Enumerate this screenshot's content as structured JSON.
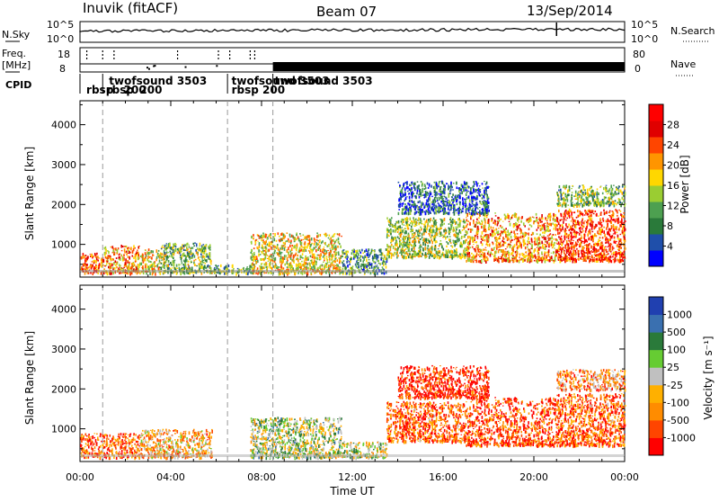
{
  "header": {
    "station": "Inuvik (fitACF)",
    "beam": "Beam 07",
    "date": "13/Sep/2014"
  },
  "summary_panels": {
    "nsky": {
      "left_label": "N.Sky",
      "right_label": "N.Search",
      "left_ticks": [
        "10^5",
        "10^0"
      ],
      "right_ticks": [
        "10^5",
        "10^0"
      ]
    },
    "freq": {
      "left_label_1": "Freq.",
      "left_label_2": "[MHz]",
      "right_label": "Nave",
      "left_ticks": [
        "18",
        "8"
      ],
      "right_ticks": [
        "80",
        "0"
      ]
    },
    "cpid": {
      "label": "CPID",
      "labels": [
        {
          "text": "twofsound 3503",
          "hour": 1.2,
          "row": 1
        },
        {
          "text": "rbsp",
          "hour": 0.2,
          "row": 2
        },
        {
          "text": "rbsp",
          "hour": 1.1,
          "row": 2
        },
        {
          "text": "200",
          "hour": 1.85,
          "row": 2
        },
        {
          "text": "200",
          "hour": 2.55,
          "row": 2
        },
        {
          "text": "twofsound 3503",
          "hour": 6.6,
          "row": 1
        },
        {
          "text": "twofsound 3503",
          "hour": 8.5,
          "row": 1
        },
        {
          "text": "rbsp  200",
          "hour": 6.6,
          "row": 2
        }
      ],
      "boundaries": [
        1.0,
        6.5,
        8.5
      ]
    }
  },
  "chart_data": [
    {
      "type": "heatmap",
      "name": "power",
      "ylabel": "Slant Range [km]",
      "yticks": [
        1000,
        2000,
        3000,
        4000
      ],
      "ylim": [
        180,
        4600
      ],
      "xlim": [
        0,
        24
      ],
      "colorbar": {
        "label": "Power [dB]",
        "ticks": [
          "28",
          "24",
          "20",
          "16",
          "12",
          "8",
          "4"
        ],
        "colors": [
          "#0000ff",
          "#1f4faa",
          "#2a7a3a",
          "#4da050",
          "#9acd32",
          "#ffd700",
          "#ff9500",
          "#ff4500",
          "#e00000",
          "#ff0000"
        ]
      },
      "scatter_regions": [
        {
          "h0": 0.0,
          "h1": 1.0,
          "r0": 300,
          "r1": 800,
          "level": 0.75
        },
        {
          "h0": 1.0,
          "h1": 2.6,
          "r0": 300,
          "r1": 1000,
          "level": 0.65
        },
        {
          "h0": 2.6,
          "h1": 3.5,
          "r0": 300,
          "r1": 900,
          "level": 0.55
        },
        {
          "h0": 3.5,
          "h1": 5.8,
          "r0": 300,
          "r1": 1050,
          "level": 0.4
        },
        {
          "h0": 5.8,
          "h1": 7.5,
          "r0": 300,
          "r1": 500,
          "level": 0.35
        },
        {
          "h0": 7.5,
          "h1": 11.5,
          "r0": 300,
          "r1": 1300,
          "level": 0.55
        },
        {
          "h0": 11.5,
          "h1": 13.5,
          "r0": 300,
          "r1": 900,
          "level": 0.3
        },
        {
          "h0": 13.5,
          "h1": 17.0,
          "r0": 700,
          "r1": 1700,
          "level": 0.45
        },
        {
          "h0": 17.0,
          "h1": 21.0,
          "r0": 600,
          "r1": 1800,
          "level": 0.65
        },
        {
          "h0": 21.0,
          "h1": 24.0,
          "r0": 600,
          "r1": 1900,
          "level": 0.8
        },
        {
          "h0": 14.0,
          "h1": 18.0,
          "r0": 1800,
          "r1": 2600,
          "level": 0.2
        },
        {
          "h0": 21.0,
          "h1": 24.0,
          "r0": 2000,
          "r1": 2500,
          "level": 0.4
        }
      ]
    },
    {
      "type": "heatmap",
      "name": "velocity",
      "ylabel": "Slant Range [km]",
      "xlabel": "Time UT",
      "xticks": [
        "00:00",
        "04:00",
        "08:00",
        "12:00",
        "16:00",
        "20:00",
        "00:00"
      ],
      "yticks": [
        1000,
        2000,
        3000,
        4000
      ],
      "ylim": [
        180,
        4600
      ],
      "xlim": [
        0,
        24
      ],
      "colorbar": {
        "label": "Velocity [m s⁻¹]",
        "ticks": [
          "1000",
          "500",
          "100",
          "25",
          "-25",
          "-100",
          "-500",
          "-1000"
        ],
        "colors": [
          "#ff0000",
          "#ff4500",
          "#ff8c00",
          "#ffb000",
          "#c0c0c0",
          "#66cc33",
          "#2a7a3a",
          "#3a70b0",
          "#2040b0"
        ]
      },
      "scatter_regions": [
        {
          "h0": 0.0,
          "h1": 2.6,
          "r0": 300,
          "r1": 900,
          "level": 0.2
        },
        {
          "h0": 2.6,
          "h1": 5.8,
          "r0": 300,
          "r1": 1000,
          "level": 0.35
        },
        {
          "h0": 7.5,
          "h1": 11.5,
          "r0": 300,
          "r1": 1300,
          "level": 0.55
        },
        {
          "h0": 11.5,
          "h1": 13.5,
          "r0": 300,
          "r1": 700,
          "level": 0.5
        },
        {
          "h0": 13.5,
          "h1": 17.0,
          "r0": 700,
          "r1": 1700,
          "level": 0.2
        },
        {
          "h0": 17.0,
          "h1": 21.0,
          "r0": 600,
          "r1": 1800,
          "level": 0.15
        },
        {
          "h0": 21.0,
          "h1": 24.0,
          "r0": 600,
          "r1": 1900,
          "level": 0.2
        },
        {
          "h0": 14.0,
          "h1": 18.0,
          "r0": 1800,
          "r1": 2600,
          "level": 0.1
        },
        {
          "h0": 21.0,
          "h1": 24.0,
          "r0": 2000,
          "r1": 2500,
          "level": 0.3
        }
      ]
    }
  ]
}
